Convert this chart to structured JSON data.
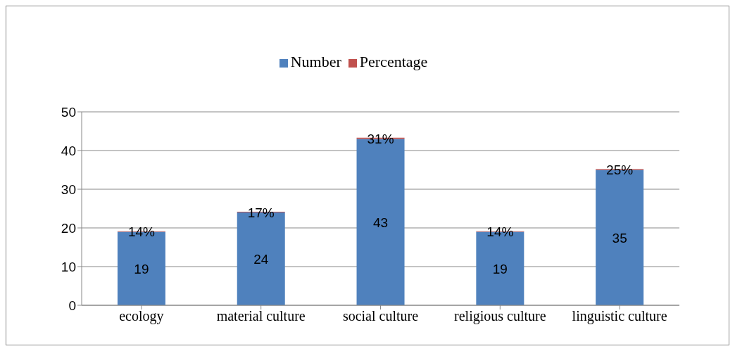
{
  "chart_data": {
    "type": "bar",
    "stacked": true,
    "categories": [
      "ecology",
      "material culture",
      "social culture",
      "religious culture",
      "linguistic culture"
    ],
    "series": [
      {
        "name": "Number",
        "color": "#4f81bd",
        "values": [
          19,
          24,
          43,
          19,
          35
        ],
        "value_labels": [
          "19",
          "24",
          "43",
          "19",
          "35"
        ]
      },
      {
        "name": "Percentage",
        "color": "#c0504d",
        "values": [
          0.14,
          0.17,
          0.31,
          0.14,
          0.25
        ],
        "value_labels": [
          "14%",
          "17%",
          "31%",
          "14%",
          "25%"
        ]
      }
    ],
    "ylim": [
      0,
      50
    ],
    "yticks": [
      0,
      10,
      20,
      30,
      40,
      50
    ],
    "grid": "y",
    "legend": "top"
  }
}
